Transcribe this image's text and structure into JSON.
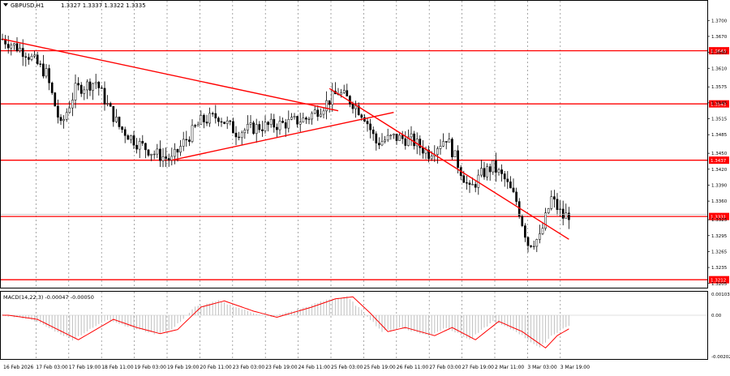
{
  "chart_data": [
    {
      "type": "candlestick",
      "title": "GBPUSD,H1",
      "ohlc_label": "1.3327 1.3337 1.3322 1.3335",
      "ylim": [
        1.3197,
        1.3737
      ],
      "y_ticks": [
        "1.3700",
        "1.3670",
        "1.3640",
        "1.3610",
        "1.3575",
        "1.3545",
        "1.3515",
        "1.3485",
        "1.3450",
        "1.3420",
        "1.3390",
        "1.3360",
        "1.3325",
        "1.3295",
        "1.3265",
        "1.3235",
        "1.3205"
      ],
      "x_ticks": [
        "16 Feb 2026",
        "17 Feb 03:00",
        "17 Feb 19:00",
        "18 Feb 11:00",
        "19 Feb 03:00",
        "19 Feb 19:00",
        "20 Feb 11:00",
        "23 Feb 03:00",
        "23 Feb 19:00",
        "24 Feb 11:00",
        "25 Feb 03:00",
        "25 Feb 19:00",
        "26 Feb 11:00",
        "27 Feb 03:00",
        "27 Feb 19:00",
        "2 Mar 11:00",
        "3 Mar 03:00",
        "3 Mar 19:00"
      ],
      "levels": [
        {
          "value": 1.3643,
          "label": "1.3643"
        },
        {
          "value": 1.3543,
          "label": "1.3543"
        },
        {
          "value": 1.3437,
          "label": "1.3437"
        },
        {
          "value": 1.3331,
          "label": "1.3331"
        },
        {
          "value": 1.3212,
          "label": "1.3212"
        }
      ],
      "trendlines": [
        {
          "name": "descending-long",
          "from": {
            "bar": 0,
            "price": 1.3665
          },
          "to": {
            "bar": 115,
            "price": 1.353
          }
        },
        {
          "name": "ascending",
          "from": {
            "bar": 58,
            "price": 1.3437
          },
          "to": {
            "bar": 134,
            "price": 1.3527
          }
        },
        {
          "name": "descending-short",
          "from": {
            "bar": 112,
            "price": 1.3572
          },
          "to": {
            "bar": 194,
            "price": 1.3288
          }
        }
      ],
      "current_price": "1.3335",
      "colors": {
        "level": "#ff0000",
        "trend": "#ff0000",
        "candle": "#000000",
        "current": "#c0c0c0"
      }
    },
    {
      "type": "histogram",
      "title": "MACD(14,22,3) -0.00047 -0.00050",
      "ylim": [
        -0.00202,
        0.00103
      ],
      "y_ticks": [
        "0.00103",
        "0.00",
        "-0.00202"
      ],
      "colors": {
        "histogram": "#c0c0c0",
        "signal": "#ff0000"
      }
    }
  ]
}
